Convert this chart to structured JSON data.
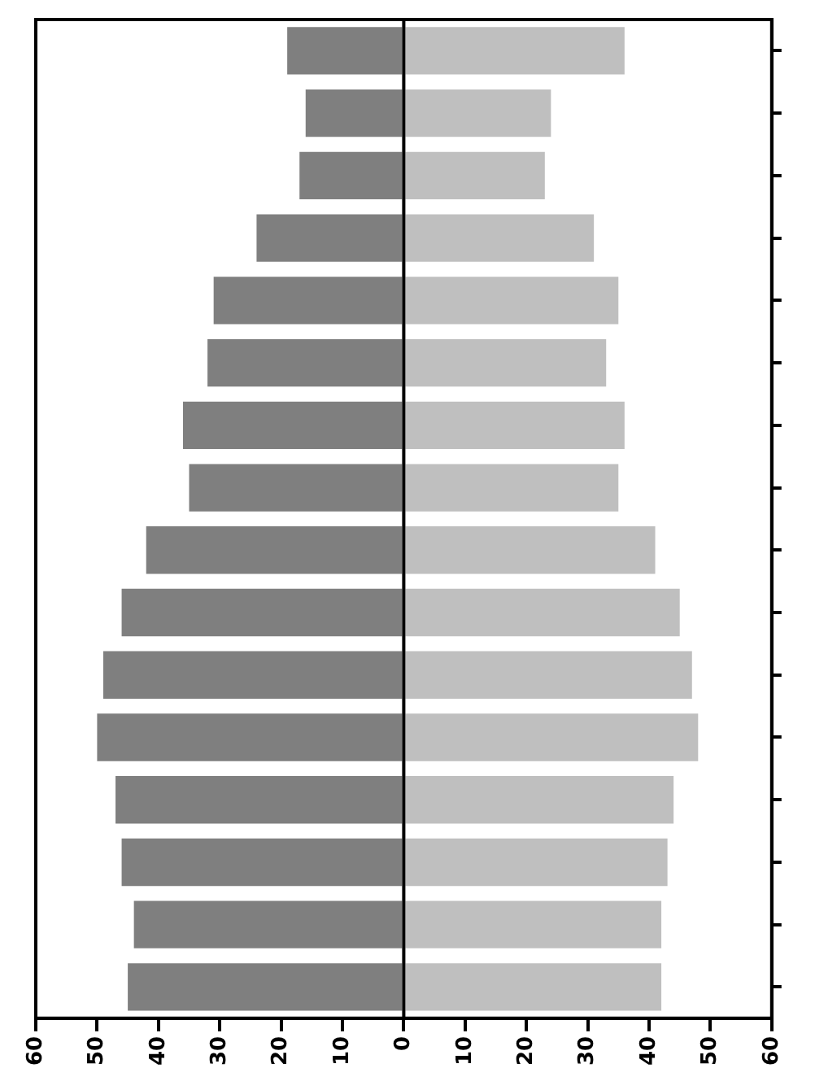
{
  "chart_data": {
    "type": "bar",
    "orientation": "horizontal",
    "stacked": true,
    "categories": [
      null,
      null,
      null,
      null,
      null,
      null,
      null,
      null,
      null,
      null,
      null,
      null,
      null,
      null,
      null,
      null
    ],
    "series": [
      {
        "color": "#7f7f7f",
        "values": [
          -19,
          -16,
          -17,
          -24,
          -31,
          -32,
          -36,
          -35,
          -42,
          -46,
          -49,
          -50,
          -47,
          -46,
          -44,
          -45
        ]
      },
      {
        "color": "#bfbfbf",
        "values": [
          36,
          24,
          23,
          31,
          35,
          33,
          36,
          35,
          41,
          45,
          47,
          48,
          44,
          43,
          42,
          42
        ]
      }
    ],
    "xlim": [
      -60,
      60
    ],
    "xticks": [
      {
        "value": -60,
        "label": "60"
      },
      {
        "value": -50,
        "label": "50"
      },
      {
        "value": -40,
        "label": "40"
      },
      {
        "value": -30,
        "label": "30"
      },
      {
        "value": -20,
        "label": "20"
      },
      {
        "value": -10,
        "label": "10"
      },
      0,
      10,
      20,
      30,
      40,
      50,
      60
    ],
    "ref_lines": [
      {
        "axis": "x",
        "value": 0,
        "color": "#000000"
      }
    ],
    "tick_labels": "x",
    "grid": false,
    "legend": false
  }
}
